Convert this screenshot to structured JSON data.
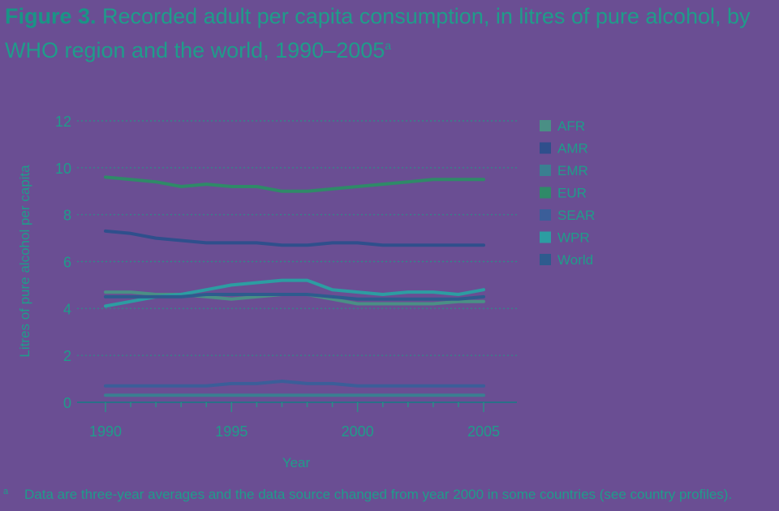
{
  "caption": {
    "figure_label": "Figure 3.",
    "title": "Recorded adult per capita consumption, in litres of pure alcohol, by WHO region and the world, 1990–2005",
    "superscript": "a"
  },
  "footnote": {
    "marker": "a",
    "text": "Data are three-year averages and the data source changed from year 2000 in some countries (see country profiles)."
  },
  "chart_data": {
    "type": "line",
    "xlabel": "Year",
    "ylabel": "Litres of pure alcohol per capita",
    "xlim": [
      1990,
      2005
    ],
    "ylim": [
      0,
      12
    ],
    "x_ticks": [
      1990,
      1995,
      2000,
      2005
    ],
    "y_ticks": [
      0,
      2,
      4,
      6,
      8,
      10,
      12
    ],
    "grid": "horizontal dotted",
    "legend_position": "right",
    "x": [
      1990,
      1991,
      1992,
      1993,
      1994,
      1995,
      1996,
      1997,
      1998,
      1999,
      2000,
      2001,
      2002,
      2003,
      2004,
      2005
    ],
    "series": [
      {
        "name": "AFR",
        "color": "#4a8f85",
        "values": [
          4.7,
          4.7,
          4.6,
          4.6,
          4.5,
          4.4,
          4.5,
          4.6,
          4.6,
          4.4,
          4.2,
          4.2,
          4.2,
          4.2,
          4.3,
          4.3
        ]
      },
      {
        "name": "AMR",
        "color": "#2f4f8c",
        "values": [
          7.3,
          7.2,
          7.0,
          6.9,
          6.8,
          6.8,
          6.8,
          6.7,
          6.7,
          6.8,
          6.8,
          6.7,
          6.7,
          6.7,
          6.7,
          6.7
        ]
      },
      {
        "name": "EMR",
        "color": "#3a7f91",
        "values": [
          0.3,
          0.3,
          0.3,
          0.3,
          0.3,
          0.3,
          0.3,
          0.3,
          0.3,
          0.3,
          0.3,
          0.3,
          0.3,
          0.3,
          0.3,
          0.3
        ]
      },
      {
        "name": "EUR",
        "color": "#2f8a68",
        "values": [
          9.6,
          9.5,
          9.4,
          9.2,
          9.3,
          9.2,
          9.2,
          9.0,
          9.0,
          9.1,
          9.2,
          9.3,
          9.4,
          9.5,
          9.5,
          9.5
        ]
      },
      {
        "name": "SEAR",
        "color": "#3b5e99",
        "values": [
          0.7,
          0.7,
          0.7,
          0.7,
          0.7,
          0.8,
          0.8,
          0.9,
          0.8,
          0.8,
          0.7,
          0.7,
          0.7,
          0.7,
          0.7,
          0.7
        ]
      },
      {
        "name": "WPR",
        "color": "#2c9da2",
        "values": [
          4.1,
          4.3,
          4.5,
          4.6,
          4.8,
          5.0,
          5.1,
          5.2,
          5.2,
          4.8,
          4.7,
          4.6,
          4.7,
          4.7,
          4.6,
          4.8
        ]
      },
      {
        "name": "World",
        "color": "#2e5b8e",
        "values": [
          4.5,
          4.5,
          4.5,
          4.5,
          4.6,
          4.6,
          4.6,
          4.6,
          4.6,
          4.5,
          4.4,
          4.4,
          4.4,
          4.4,
          4.4,
          4.5
        ]
      }
    ]
  }
}
